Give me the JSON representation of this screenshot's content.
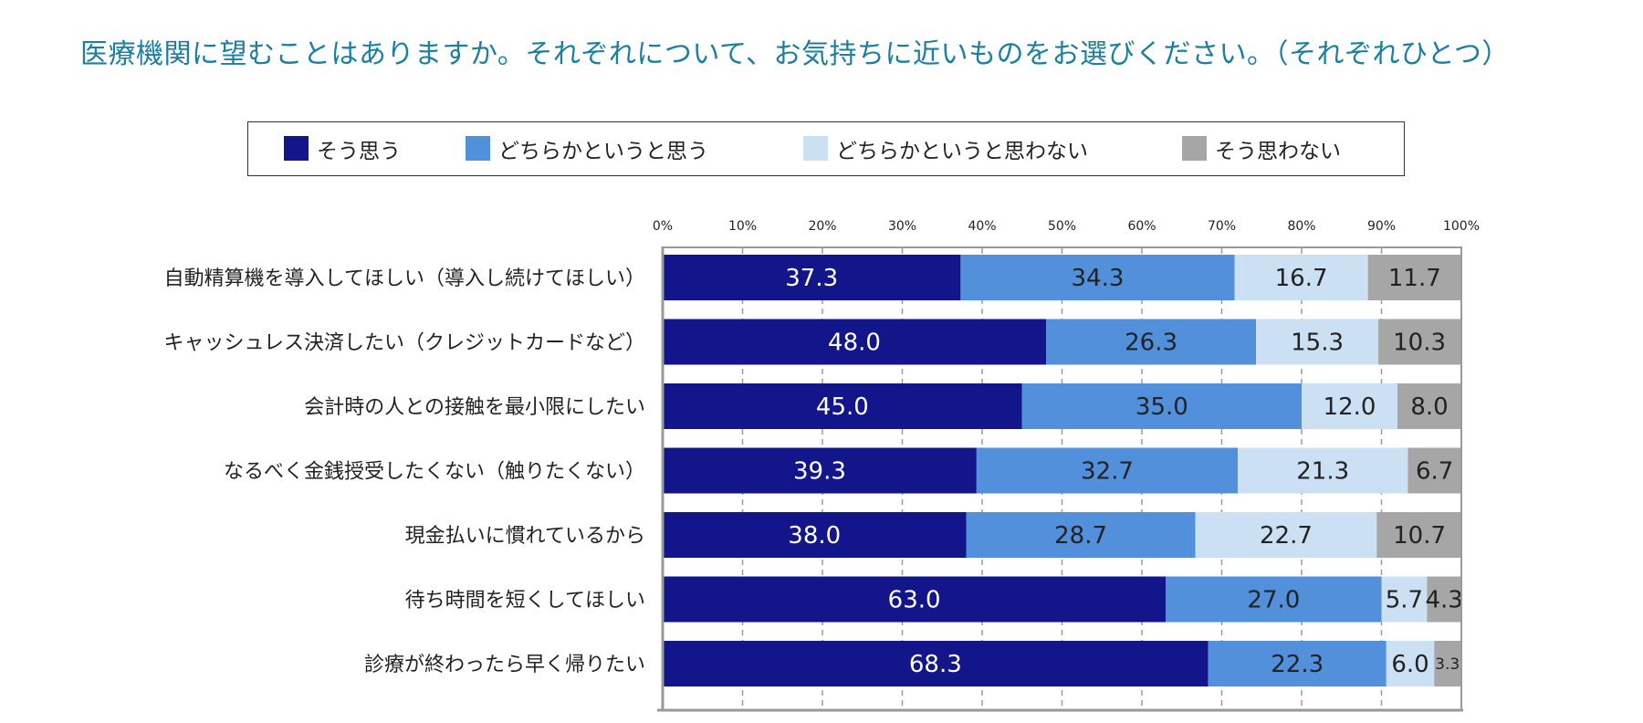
{
  "chart_data": {
    "type": "bar",
    "orientation": "horizontal",
    "stacked": true,
    "title": "医療機関に望むことはありますか。それぞれについて、お気持ちに近いものをお選びください。（それぞれひとつ）",
    "legend_position": "top",
    "xlim": [
      0,
      100
    ],
    "x_ticks": [
      "0%",
      "10%",
      "20%",
      "30%",
      "40%",
      "50%",
      "60%",
      "70%",
      "80%",
      "90%",
      "100%"
    ],
    "categories": [
      "自動精算機を導入してほしい（導入し続けてほしい）",
      "キャッシュレス決済したい（クレジットカードなど）",
      "会計時の人との接触を最小限にしたい",
      "なるべく金銭授受したくない（触りたくない）",
      "現金払いに慣れているから",
      "待ち時間を短くしてほしい",
      "診療が終わったら早く帰りたい"
    ],
    "series": [
      {
        "name": "そう思う",
        "color": "#13168a",
        "label_color": "#ffffff",
        "values": [
          37.3,
          48.0,
          45.0,
          39.3,
          38.0,
          63.0,
          68.3
        ],
        "labels": [
          "37.3",
          "48.0",
          "45.0",
          "39.3",
          "38.0",
          "63.0",
          "68.3"
        ]
      },
      {
        "name": "どちらかというと思う",
        "color": "#5290dc",
        "label_color": "#222222",
        "values": [
          34.3,
          26.3,
          35.0,
          32.7,
          28.7,
          27.0,
          22.3
        ],
        "labels": [
          "34.3",
          "26.3",
          "35.0",
          "32.7",
          "28.7",
          "27.0",
          "22.3"
        ]
      },
      {
        "name": "どちらかというと思わない",
        "color": "#cce0f4",
        "label_color": "#222222",
        "values": [
          16.7,
          15.3,
          12.0,
          21.3,
          22.7,
          5.7,
          6.0
        ],
        "labels": [
          "16.7",
          "15.3",
          "12.0",
          "21.3",
          "22.7",
          "5.7",
          "6.0"
        ]
      },
      {
        "name": "そう思わない",
        "color": "#a6a6a6",
        "label_color": "#222222",
        "values": [
          11.7,
          10.3,
          8.0,
          6.7,
          10.7,
          4.3,
          3.3
        ],
        "labels": [
          "11.7",
          "10.3",
          "8.0",
          "6.7",
          "10.7",
          "4.3",
          "3.3"
        ]
      }
    ]
  }
}
